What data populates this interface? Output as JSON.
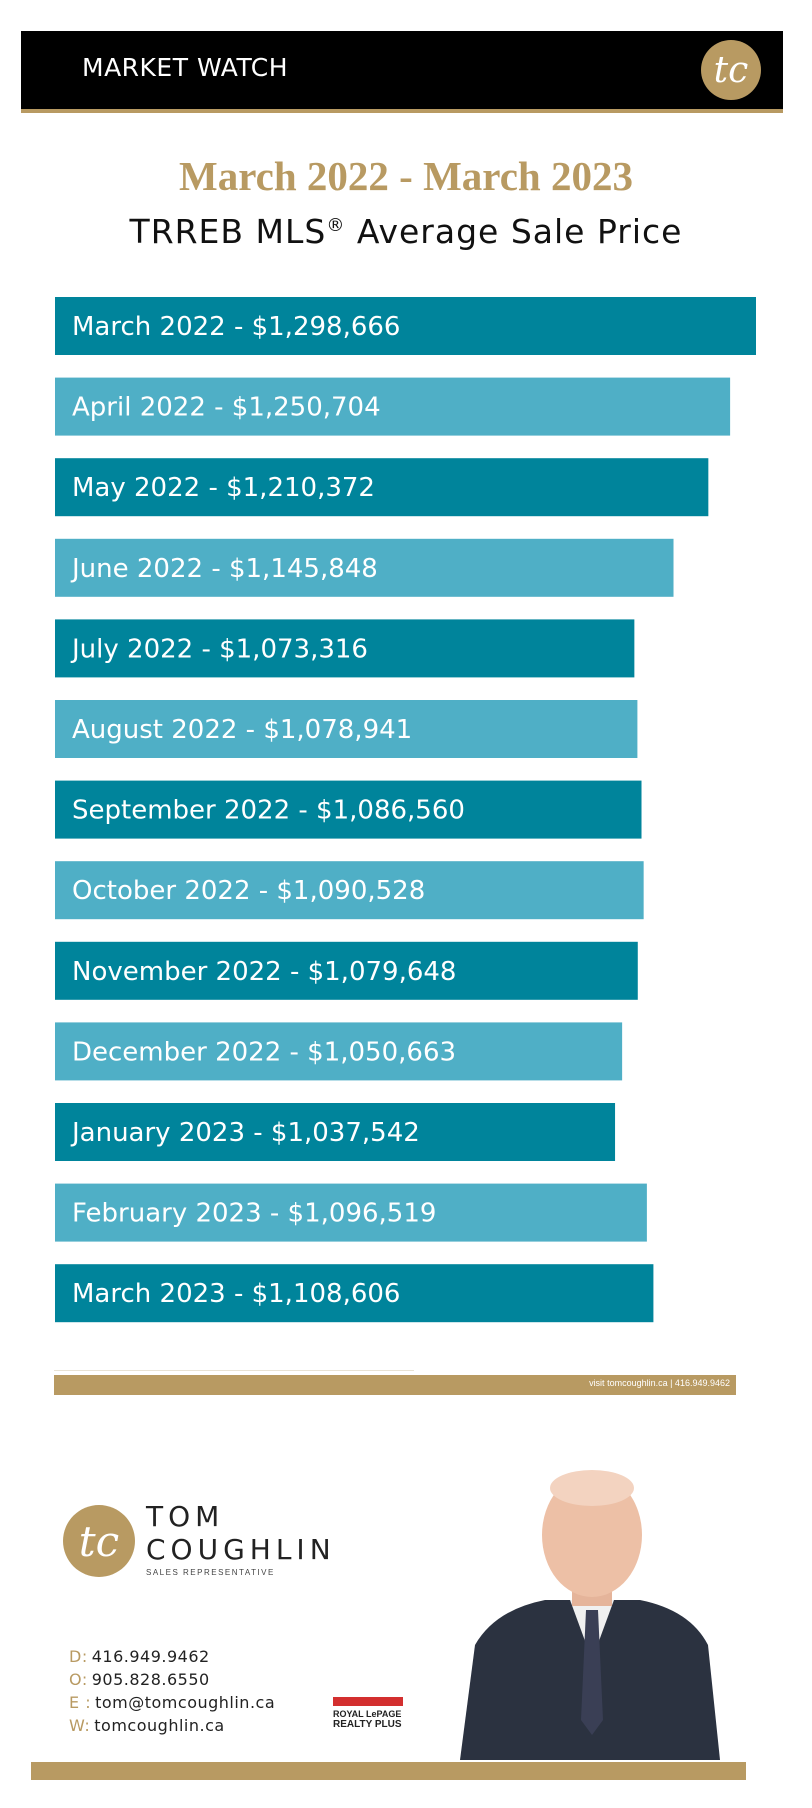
{
  "header": {
    "title": "MARKET WATCH",
    "logo_text": "tc"
  },
  "heading": {
    "title": "March 2022 - March 2023",
    "subtitle": "TRREB MLS",
    "subtitle_mark": "®",
    "subtitle_rest": " Average Sale Price"
  },
  "colors": {
    "gold": "#b89a62",
    "teal_dark": "#00849b",
    "teal_light": "#4fafc6"
  },
  "chart_data": {
    "type": "bar",
    "orientation": "horizontal",
    "categories": [
      "March 2022",
      "April 2022",
      "May 2022",
      "June 2022",
      "July 2022",
      "August 2022",
      "September 2022",
      "October 2022",
      "November 2022",
      "December 2022",
      "January 2023",
      "February 2023",
      "March 2023"
    ],
    "values": [
      1298666,
      1250704,
      1210372,
      1145848,
      1073316,
      1078941,
      1086560,
      1090528,
      1079648,
      1050663,
      1037542,
      1096519,
      1108606
    ],
    "labels": [
      "March 2022 - $1,298,666",
      "April 2022 - $1,250,704",
      "May 2022 - $1,210,372",
      "June 2022 - $1,145,848",
      "July 2022 - $1,073,316",
      "August 2022 - $1,078,941",
      "September 2022 - $1,086,560",
      "October 2022 - $1,090,528",
      "November 2022 - $1,079,648",
      "December 2022 - $1,050,663",
      "January 2023 - $1,037,542",
      "February 2023 - $1,096,519",
      "March 2023 - $1,108,606"
    ],
    "title": "March 2022 - March 2023",
    "subtitle": "TRREB MLS® Average Sale Price",
    "xlabel": "",
    "ylabel": "",
    "grid": false
  },
  "footer": {
    "contact_line": "visit tomcoughlin.ca | 416.949.9462"
  },
  "card": {
    "name_first": "TOM",
    "name_last": "COUGHLIN",
    "role": "SALES REPRESENTATIVE",
    "d_label": "D:",
    "d_value": "416.949.9462",
    "o_label": "O:",
    "o_value": "905.828.6550",
    "e_label": "E :",
    "e_value": "tom@tomcoughlin.ca",
    "w_label": "W:",
    "w_value": "tomcoughlin.ca",
    "brokerage_1": "ROYAL LePAGE",
    "brokerage_2": "REALTY PLUS"
  }
}
